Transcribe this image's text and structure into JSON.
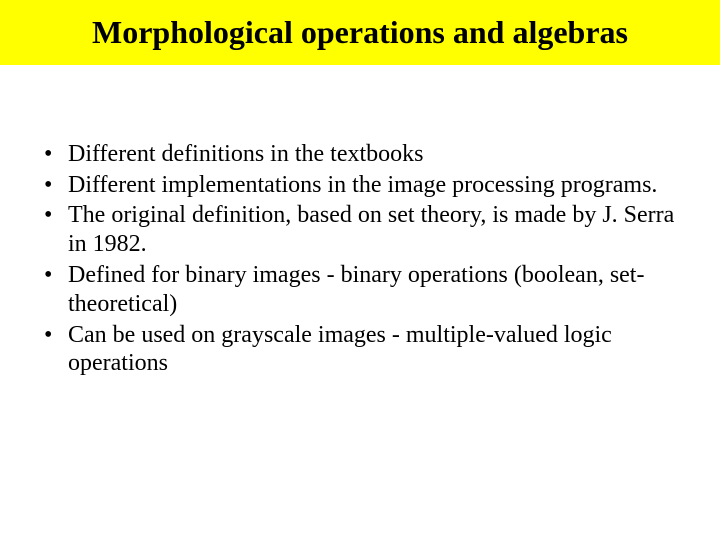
{
  "slide": {
    "title": "Morphological operations and algebras",
    "title_band_color": "#ffff00",
    "title_text_color": "#000000",
    "title_fontsize": 32,
    "title_fontweight": "bold",
    "background_color": "#ffffff",
    "body_text_color": "#000000",
    "body_fontsize": 24,
    "font_family": "Times New Roman",
    "bullets": [
      "Different definitions in the textbooks",
      "Different implementations in the image processing programs.",
      "The original definition, based on set theory, is made by J. Serra in 1982.",
      "Defined for binary images - binary operations (boolean, set-theoretical)",
      "Can be used on grayscale images - multiple-valued logic operations"
    ]
  }
}
